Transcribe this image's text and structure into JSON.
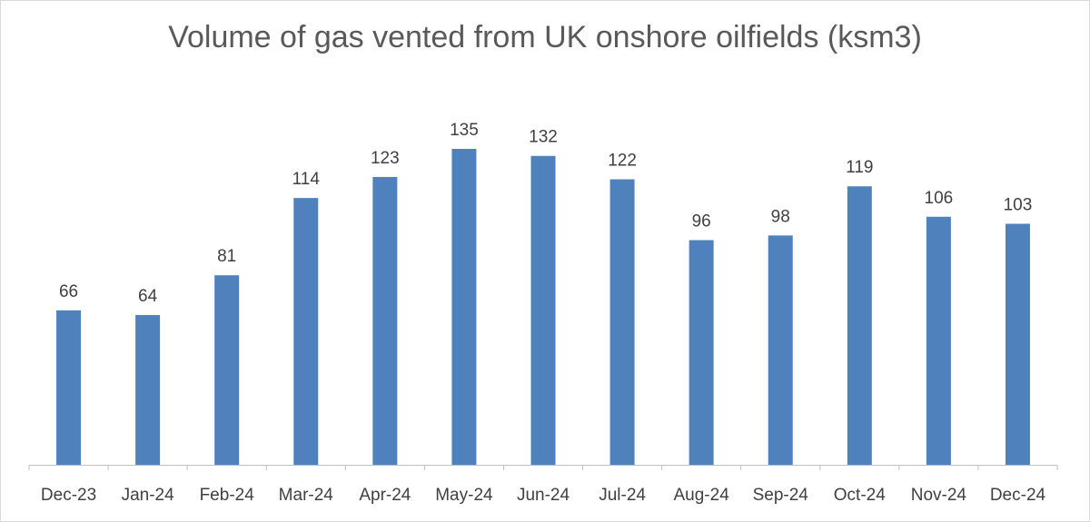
{
  "chart_data": {
    "type": "bar",
    "title": "Volume of gas vented from UK onshore oilfields (ksm3)",
    "xlabel": "",
    "ylabel": "",
    "categories": [
      "Dec-23",
      "Jan-24",
      "Feb-24",
      "Mar-24",
      "Apr-24",
      "May-24",
      "Jun-24",
      "Jul-24",
      "Aug-24",
      "Sep-24",
      "Oct-24",
      "Nov-24",
      "Dec-24"
    ],
    "values": [
      66,
      64,
      81,
      114,
      123,
      135,
      132,
      122,
      96,
      98,
      119,
      106,
      103
    ],
    "data_labels": [
      "66",
      "64",
      "81",
      "114",
      "123",
      "135",
      "132",
      "122",
      "96",
      "98",
      "119",
      "106",
      "103"
    ],
    "ylim": [
      0,
      135
    ],
    "grid": false,
    "legend": "none",
    "bar_color": "#4f81bd",
    "axis_color": "#bfbfbf"
  }
}
